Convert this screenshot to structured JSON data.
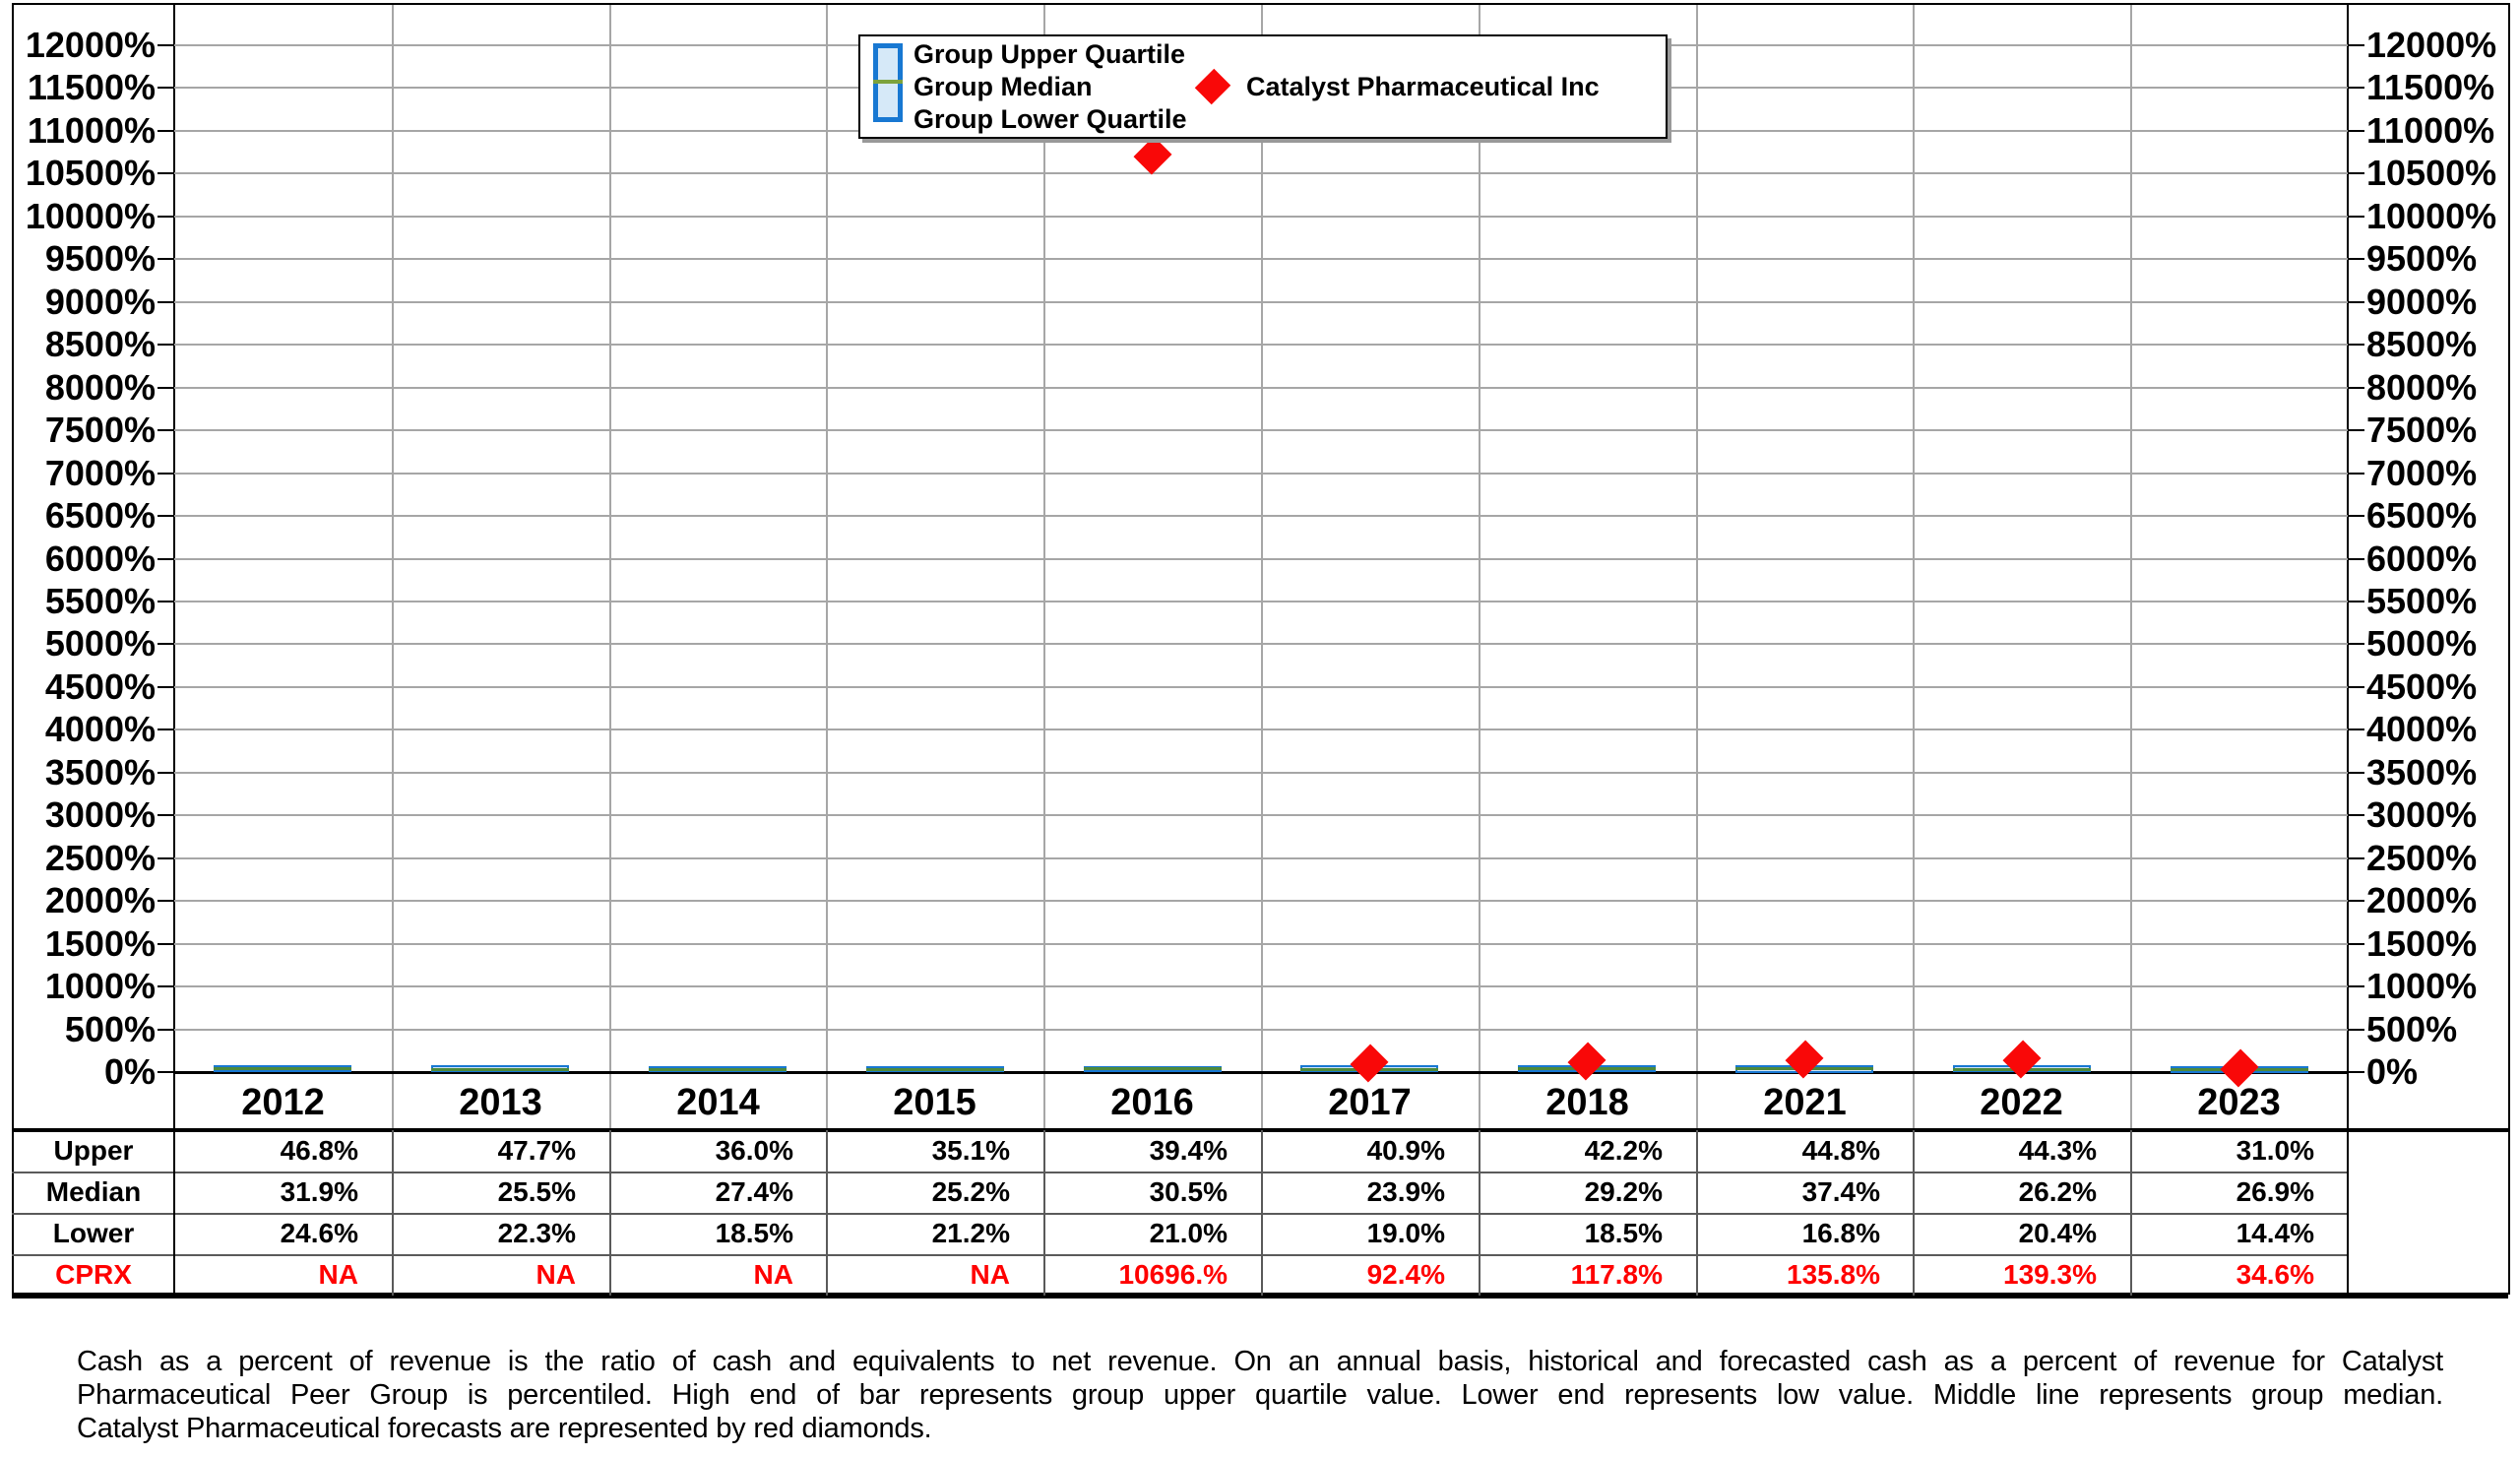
{
  "legend": {
    "items": [
      {
        "label": "Group Upper Quartile"
      },
      {
        "label": "Group Median"
      },
      {
        "label": "Group Lower Quartile"
      }
    ],
    "marker_label": "Catalyst Pharmaceutical Inc"
  },
  "chart_data": {
    "type": "bar",
    "subtype": "floating-range-bars-with-median-line-and-diamond-scatter",
    "title": "",
    "xlabel": "",
    "ylabel": "",
    "categories": [
      "2012",
      "2013",
      "2014",
      "2015",
      "2016",
      "2017",
      "2018",
      "2021",
      "2022",
      "2023"
    ],
    "series": [
      {
        "name": "Group Upper Quartile",
        "values": [
          46.8,
          47.7,
          36.0,
          35.1,
          39.4,
          40.9,
          42.2,
          44.8,
          44.3,
          31.0
        ]
      },
      {
        "name": "Group Median",
        "values": [
          31.9,
          25.5,
          27.4,
          25.2,
          30.5,
          23.9,
          29.2,
          37.4,
          26.2,
          26.9
        ]
      },
      {
        "name": "Group Lower Quartile",
        "values": [
          24.6,
          22.3,
          18.5,
          21.2,
          21.0,
          19.0,
          18.5,
          16.8,
          20.4,
          14.4
        ]
      },
      {
        "name": "Catalyst Pharmaceutical Inc",
        "marker": "red-diamond",
        "values": [
          null,
          null,
          null,
          null,
          10696,
          92.4,
          117.8,
          135.8,
          139.3,
          34.6
        ]
      }
    ],
    "y_axis": {
      "min": 0,
      "max": 12000,
      "step": 500,
      "tick_suffix": "%",
      "sides": [
        "left",
        "right"
      ],
      "ylim": [
        0,
        12000
      ]
    },
    "grid": true,
    "legend_position": "top-center"
  },
  "table": {
    "row_labels": [
      "Upper",
      "Median",
      "Lower",
      "CPRX"
    ],
    "rows": [
      {
        "label": "Upper",
        "color": "#000000",
        "values": [
          "46.8%",
          "47.7%",
          "36.0%",
          "35.1%",
          "39.4%",
          "40.9%",
          "42.2%",
          "44.8%",
          "44.3%",
          "31.0%"
        ]
      },
      {
        "label": "Median",
        "color": "#000000",
        "values": [
          "31.9%",
          "25.5%",
          "27.4%",
          "25.2%",
          "30.5%",
          "23.9%",
          "29.2%",
          "37.4%",
          "26.2%",
          "26.9%"
        ]
      },
      {
        "label": "Lower",
        "color": "#000000",
        "values": [
          "24.6%",
          "22.3%",
          "18.5%",
          "21.2%",
          "21.0%",
          "19.0%",
          "18.5%",
          "16.8%",
          "20.4%",
          "14.4%"
        ]
      },
      {
        "label": "CPRX",
        "color": "#ff0000",
        "values": [
          "NA",
          "NA",
          "NA",
          "NA",
          "10696.%",
          "92.4%",
          "117.8%",
          "135.8%",
          "139.3%",
          "34.6%"
        ]
      }
    ]
  },
  "footer": {
    "lines": [
      "Cash as a percent of revenue is the ratio of cash and equivalents to net revenue.  On an annual basis, historical and forecasted cash as a percent of revenue for Catalyst",
      "Pharmaceutical Peer Group is percentiled.  High end of bar represents group upper quartile value.  Lower end represents low value.  Middle line represents group median.",
      "Catalyst Pharmaceutical forecasts are represented by red diamonds."
    ]
  },
  "colors": {
    "bar_fill": "#cfe5f7",
    "bar_border": "#1878d2",
    "median_line": "#4d8a3c",
    "diamond": "#f90808",
    "cprx_text": "#ff0000",
    "gridline": "#a6a6a6",
    "frame": "#000000"
  }
}
